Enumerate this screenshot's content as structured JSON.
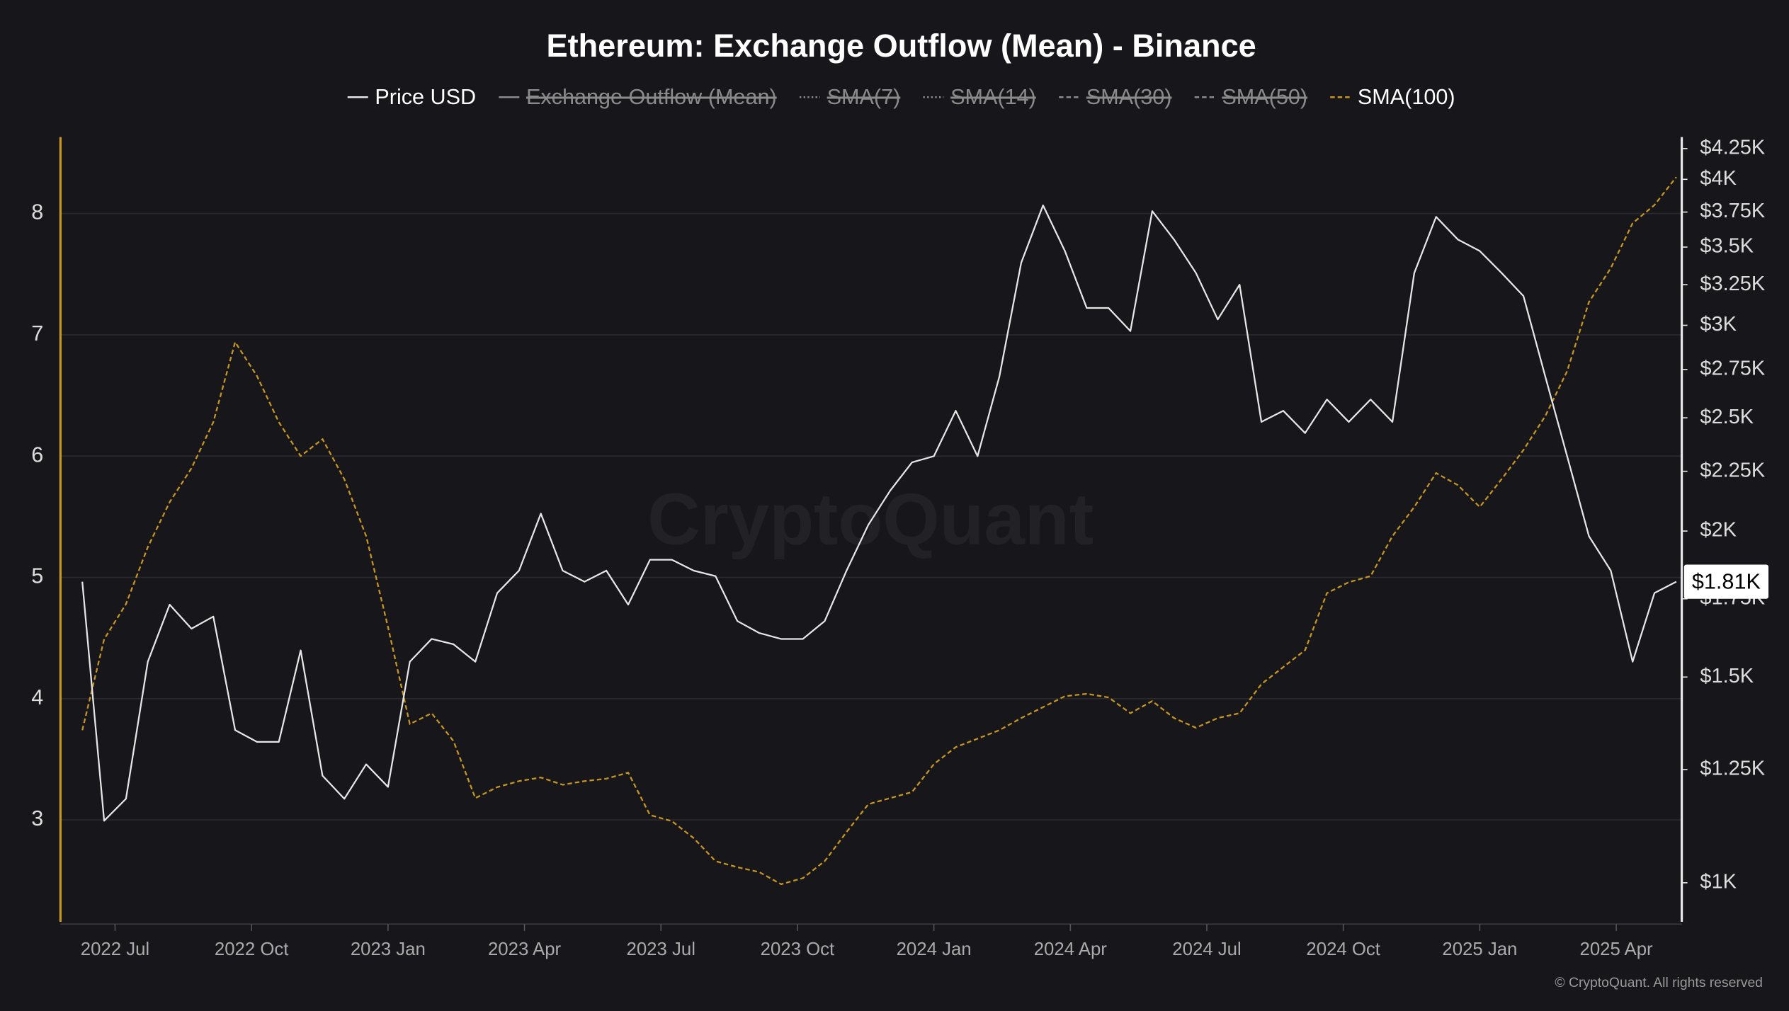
{
  "chart_data": {
    "type": "line",
    "title": "Ethereum: Exchange Outflow (Mean) - Binance",
    "watermark": "CryptoQuant",
    "copyright": "© CryptoQuant. All rights reserved",
    "x": [
      2022.44,
      2022.48,
      2022.52,
      2022.56,
      2022.6,
      2022.64,
      2022.68,
      2022.72,
      2022.76,
      2022.8,
      2022.84,
      2022.88,
      2022.92,
      2022.96,
      2023.0,
      2023.04,
      2023.08,
      2023.12,
      2023.16,
      2023.2,
      2023.24,
      2023.28,
      2023.32,
      2023.36,
      2023.4,
      2023.44,
      2023.48,
      2023.52,
      2023.56,
      2023.6,
      2023.64,
      2023.68,
      2023.72,
      2023.76,
      2023.8,
      2023.84,
      2023.88,
      2023.92,
      2023.96,
      2024.0,
      2024.04,
      2024.08,
      2024.12,
      2024.16,
      2024.2,
      2024.24,
      2024.28,
      2024.32,
      2024.36,
      2024.4,
      2024.44,
      2024.48,
      2024.52,
      2024.56,
      2024.6,
      2024.64,
      2024.68,
      2024.72,
      2024.76,
      2024.8,
      2024.84,
      2024.88,
      2024.92,
      2024.96,
      2025.0,
      2025.04,
      2025.08,
      2025.12,
      2025.16,
      2025.2,
      2025.24,
      2025.28,
      2025.32,
      2025.36
    ],
    "xlim": [
      2022.4,
      2025.37
    ],
    "xticks": [
      {
        "value": 2022.5,
        "label": "2022 Jul"
      },
      {
        "value": 2022.75,
        "label": "2022 Oct"
      },
      {
        "value": 2023.0,
        "label": "2023 Jan"
      },
      {
        "value": 2023.25,
        "label": "2023 Apr"
      },
      {
        "value": 2023.5,
        "label": "2023 Jul"
      },
      {
        "value": 2023.75,
        "label": "2023 Oct"
      },
      {
        "value": 2024.0,
        "label": "2024 Jan"
      },
      {
        "value": 2024.25,
        "label": "2024 Apr"
      },
      {
        "value": 2024.5,
        "label": "2024 Jul"
      },
      {
        "value": 2024.75,
        "label": "2024 Oct"
      },
      {
        "value": 2025.0,
        "label": "2025 Jan"
      },
      {
        "value": 2025.25,
        "label": "2025 Apr"
      }
    ],
    "ylim": [
      2.16,
      8.63
    ],
    "yticks": [
      3,
      4,
      5,
      6,
      7,
      8
    ],
    "y2lim": [
      926,
      4347
    ],
    "y2_log": true,
    "y2ticks": [
      {
        "value": 1000,
        "label": "$1K"
      },
      {
        "value": 1250,
        "label": "$1.25K"
      },
      {
        "value": 1500,
        "label": "$1.5K"
      },
      {
        "value": 1750,
        "label": "$1.75K"
      },
      {
        "value": 2000,
        "label": "$2K"
      },
      {
        "value": 2250,
        "label": "$2.25K"
      },
      {
        "value": 2500,
        "label": "$2.5K"
      },
      {
        "value": 2750,
        "label": "$2.75K"
      },
      {
        "value": 3000,
        "label": "$3K"
      },
      {
        "value": 3250,
        "label": "$3.25K"
      },
      {
        "value": 3500,
        "label": "$3.5K"
      },
      {
        "value": 3750,
        "label": "$3.75K"
      },
      {
        "value": 4000,
        "label": "$4K"
      },
      {
        "value": 4250,
        "label": "$4.25K"
      }
    ],
    "grid": true,
    "left_axis_color": "#c8961e",
    "right_axis_color": "#e6e6e6",
    "current_label": {
      "value": 1810,
      "label": "$1.81K"
    },
    "series": [
      {
        "name": "Price USD",
        "color": "#e6e6e6",
        "axis": "y2",
        "line_style": "solid",
        "values": [
          1810,
          1130,
          1180,
          1546,
          1730,
          1650,
          1690,
          1351,
          1320,
          1320,
          1581,
          1235,
          1180,
          1263,
          1208,
          1546,
          1617,
          1600,
          1546,
          1770,
          1850,
          2070,
          1850,
          1810,
          1850,
          1730,
          1890,
          1890,
          1850,
          1830,
          1675,
          1636,
          1617,
          1617,
          1675,
          1850,
          2025,
          2166,
          2290,
          2318,
          2535,
          2318,
          2712,
          3394,
          3800,
          3473,
          3104,
          3104,
          2966,
          3757,
          3552,
          3326,
          3035,
          3250,
          2480,
          2535,
          2426,
          2592,
          2480,
          2592,
          2480,
          3326,
          3715,
          3552,
          3473,
          3326,
          3178,
          2712,
          2318,
          1980,
          1850,
          1546,
          1770,
          1810
        ]
      },
      {
        "name": "Exchange Outflow (Mean)",
        "color": "#8a8a8a",
        "line_style": "solid",
        "hidden": true
      },
      {
        "name": "SMA(7)",
        "color": "#8a8a8a",
        "line_style": "dotted",
        "hidden": true
      },
      {
        "name": "SMA(14)",
        "color": "#8a8a8a",
        "line_style": "dotted",
        "hidden": true
      },
      {
        "name": "SMA(30)",
        "color": "#8a8a8a",
        "line_style": "dashed",
        "hidden": true
      },
      {
        "name": "SMA(50)",
        "color": "#8a8a8a",
        "line_style": "dashed",
        "hidden": true
      },
      {
        "name": "SMA(100)",
        "color": "#c8961e",
        "axis": "y",
        "line_style": "dashed",
        "values": [
          3.74,
          4.49,
          4.78,
          5.25,
          5.62,
          5.9,
          6.28,
          6.94,
          6.66,
          6.28,
          6.0,
          6.14,
          5.81,
          5.34,
          4.59,
          3.79,
          3.88,
          3.65,
          3.18,
          3.27,
          3.32,
          3.35,
          3.29,
          3.32,
          3.34,
          3.39,
          3.04,
          2.99,
          2.85,
          2.66,
          2.61,
          2.57,
          2.47,
          2.52,
          2.66,
          2.9,
          3.13,
          3.18,
          3.23,
          3.46,
          3.6,
          3.67,
          3.74,
          3.84,
          3.93,
          4.02,
          4.04,
          4.01,
          3.88,
          3.98,
          3.84,
          3.76,
          3.84,
          3.88,
          4.12,
          4.26,
          4.4,
          4.87,
          4.96,
          5.01,
          5.34,
          5.58,
          5.86,
          5.76,
          5.58,
          5.81,
          6.05,
          6.33,
          6.7,
          7.27,
          7.55,
          7.92,
          8.07,
          8.3
        ]
      }
    ]
  }
}
